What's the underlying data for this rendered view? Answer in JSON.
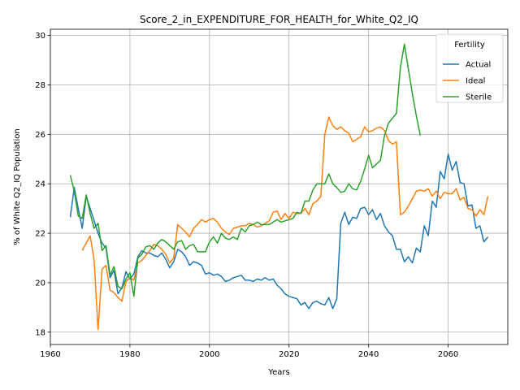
{
  "chart_data": {
    "type": "line",
    "title": "Score_2_in_EXPENDITURE_FOR_HEALTH_for_White_Q2_IQ",
    "xlabel": "Years",
    "ylabel": "% of White Q2_IQ Population",
    "xlim": [
      1960,
      2075
    ],
    "ylim": [
      17.5,
      30.25
    ],
    "xticks": [
      1960,
      1980,
      2000,
      2020,
      2040,
      2060
    ],
    "yticks": [
      18,
      20,
      22,
      24,
      26,
      28,
      30
    ],
    "grid": true,
    "legend": {
      "title": "Fertility",
      "placement": "top-right"
    },
    "series": [
      {
        "name": "Actual",
        "color": "#1f77b4",
        "x": [
          1965,
          1966,
          1967,
          1968,
          1969,
          1970,
          1971,
          1972,
          1973,
          1974,
          1975,
          1976,
          1977,
          1978,
          1979,
          1980,
          1981,
          1982,
          1983,
          1984,
          1985,
          1986,
          1987,
          1988,
          1989,
          1990,
          1991,
          1992,
          1993,
          1994,
          1995,
          1996,
          1997,
          1998,
          1999,
          2000,
          2001,
          2002,
          2003,
          2004,
          2005,
          2006,
          2007,
          2008,
          2009,
          2010,
          2011,
          2012,
          2013,
          2014,
          2015,
          2016,
          2017,
          2018,
          2019,
          2020,
          2021,
          2022,
          2023,
          2024,
          2025,
          2026,
          2027,
          2028,
          2029,
          2030,
          2031,
          2032,
          2033,
          2034,
          2035,
          2036,
          2037,
          2038,
          2039,
          2040,
          2041,
          2042,
          2043,
          2044,
          2045,
          2046,
          2047,
          2048,
          2049,
          2050,
          2051,
          2052,
          2053,
          2054,
          2055,
          2056,
          2057,
          2058,
          2059,
          2060,
          2061,
          2062,
          2063,
          2064,
          2065,
          2066,
          2067,
          2068,
          2069,
          2070
        ],
        "y": [
          22.65,
          23.85,
          23.0,
          22.2,
          23.5,
          23.0,
          22.5,
          22.0,
          21.6,
          21.4,
          20.2,
          20.5,
          19.55,
          19.8,
          20.45,
          20.15,
          20.35,
          21.05,
          21.3,
          21.2,
          21.2,
          21.1,
          21.05,
          21.2,
          20.95,
          20.6,
          20.85,
          21.35,
          21.25,
          21.05,
          20.7,
          20.85,
          20.8,
          20.7,
          20.35,
          20.4,
          20.3,
          20.35,
          20.25,
          20.05,
          20.1,
          20.2,
          20.25,
          20.3,
          20.1,
          20.1,
          20.05,
          20.15,
          20.1,
          20.2,
          20.1,
          20.15,
          19.9,
          19.75,
          19.55,
          19.45,
          19.4,
          19.35,
          19.1,
          19.2,
          18.95,
          19.2,
          19.25,
          19.15,
          19.1,
          19.4,
          18.95,
          19.35,
          22.4,
          22.85,
          22.35,
          22.65,
          22.6,
          23.0,
          23.05,
          22.75,
          22.95,
          22.55,
          22.8,
          22.3,
          22.05,
          21.9,
          21.35,
          21.35,
          20.85,
          21.05,
          20.8,
          21.4,
          21.25,
          22.3,
          21.9,
          23.3,
          23.05,
          24.5,
          24.2,
          25.2,
          24.55,
          24.9,
          24.05,
          24.0,
          23.1,
          23.15,
          22.2,
          22.3,
          21.65,
          21.85
        ]
      },
      {
        "name": "Ideal",
        "color": "#ff7f0e",
        "x": [
          1968,
          1969,
          1970,
          1971,
          1972,
          1973,
          1974,
          1975,
          1976,
          1977,
          1978,
          1979,
          1980,
          1981,
          1982,
          1983,
          1984,
          1985,
          1986,
          1987,
          1988,
          1989,
          1990,
          1991,
          1992,
          1993,
          1994,
          1995,
          1996,
          1997,
          1998,
          1999,
          2000,
          2001,
          2002,
          2003,
          2004,
          2005,
          2006,
          2007,
          2008,
          2009,
          2010,
          2011,
          2012,
          2013,
          2014,
          2015,
          2016,
          2017,
          2018,
          2019,
          2020,
          2021,
          2022,
          2023,
          2024,
          2025,
          2026,
          2027,
          2028,
          2029,
          2030,
          2031,
          2032,
          2033,
          2034,
          2035,
          2036,
          2037,
          2038,
          2039,
          2040,
          2041,
          2042,
          2043,
          2044,
          2045,
          2046,
          2047,
          2048,
          2049,
          2050,
          2051,
          2052,
          2053,
          2054,
          2055,
          2056,
          2057,
          2058,
          2059,
          2060,
          2061,
          2062,
          2063,
          2064,
          2065,
          2066,
          2067,
          2068,
          2069,
          2070
        ],
        "y": [
          21.3,
          21.6,
          21.9,
          20.9,
          18.1,
          20.55,
          20.7,
          19.7,
          19.6,
          19.4,
          19.25,
          20.05,
          20.2,
          20.1,
          20.8,
          20.9,
          21.1,
          21.3,
          21.55,
          21.5,
          21.35,
          21.15,
          20.8,
          21.0,
          22.35,
          22.2,
          22.05,
          21.85,
          22.2,
          22.35,
          22.55,
          22.45,
          22.55,
          22.6,
          22.45,
          22.2,
          22.05,
          21.95,
          22.2,
          22.25,
          22.3,
          22.3,
          22.4,
          22.35,
          22.25,
          22.3,
          22.4,
          22.5,
          22.85,
          22.9,
          22.55,
          22.8,
          22.6,
          22.85,
          22.8,
          22.8,
          23.0,
          22.75,
          23.2,
          23.3,
          23.5,
          26.0,
          26.7,
          26.35,
          26.2,
          26.3,
          26.15,
          26.05,
          25.7,
          25.8,
          25.9,
          26.3,
          26.1,
          26.15,
          26.25,
          26.3,
          26.15,
          25.75,
          25.6,
          25.7,
          22.75,
          22.85,
          23.1,
          23.4,
          23.7,
          23.75,
          23.7,
          23.8,
          23.5,
          23.7,
          23.4,
          23.65,
          23.6,
          23.6,
          23.8,
          23.35,
          23.45,
          23.0,
          22.95,
          22.7,
          22.95,
          22.75,
          23.5
        ]
      },
      {
        "name": "Sterile",
        "color": "#2ca02c",
        "x": [
          1965,
          1966,
          1967,
          1968,
          1969,
          1970,
          1971,
          1972,
          1973,
          1974,
          1975,
          1976,
          1977,
          1978,
          1979,
          1980,
          1981,
          1982,
          1983,
          1984,
          1985,
          1986,
          1987,
          1988,
          1989,
          1990,
          1991,
          1992,
          1993,
          1994,
          1995,
          1996,
          1997,
          1998,
          1999,
          2000,
          2001,
          2002,
          2003,
          2004,
          2005,
          2006,
          2007,
          2008,
          2009,
          2010,
          2011,
          2012,
          2013,
          2014,
          2015,
          2016,
          2017,
          2018,
          2019,
          2020,
          2021,
          2022,
          2023,
          2024,
          2025,
          2026,
          2027,
          2028,
          2029,
          2030,
          2031,
          2032,
          2033,
          2034,
          2035,
          2036,
          2037,
          2038,
          2039,
          2040,
          2041,
          2042,
          2043,
          2044,
          2045,
          2046,
          2047,
          2048,
          2049,
          2050,
          2051,
          2052,
          2053
        ],
        "y": [
          24.35,
          23.7,
          22.7,
          22.6,
          23.55,
          22.8,
          22.2,
          22.4,
          21.3,
          21.5,
          20.3,
          20.65,
          19.85,
          19.75,
          20.15,
          20.4,
          19.45,
          21.0,
          21.15,
          21.45,
          21.5,
          21.35,
          21.6,
          21.75,
          21.65,
          21.5,
          21.35,
          21.65,
          21.7,
          21.35,
          21.5,
          21.55,
          21.25,
          21.25,
          21.25,
          21.65,
          21.85,
          21.6,
          22.0,
          21.8,
          21.75,
          21.85,
          21.75,
          22.2,
          22.05,
          22.3,
          22.35,
          22.45,
          22.35,
          22.35,
          22.35,
          22.45,
          22.55,
          22.45,
          22.5,
          22.55,
          22.6,
          22.85,
          22.8,
          23.3,
          23.3,
          23.75,
          24.0,
          24.0,
          24.0,
          24.4,
          24.0,
          23.85,
          23.65,
          23.7,
          24.0,
          23.8,
          23.75,
          24.1,
          24.6,
          25.15,
          24.65,
          24.8,
          24.95,
          25.95,
          26.45,
          26.65,
          26.85,
          28.7,
          29.65,
          28.65,
          27.65,
          26.75,
          25.95
        ]
      }
    ]
  }
}
